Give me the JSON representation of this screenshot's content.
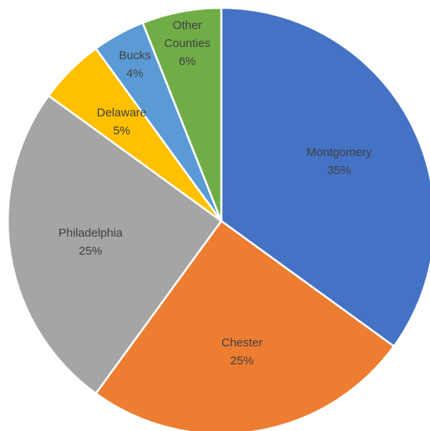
{
  "chart_data": {
    "type": "pie",
    "title": "",
    "start_angle_deg": 0,
    "direction": "clockwise",
    "slices": [
      {
        "label": "Montgomery",
        "percent_label": "35%",
        "value": 35,
        "color": "#4472C4"
      },
      {
        "label": "Chester",
        "percent_label": "25%",
        "value": 25,
        "color": "#ED7D31"
      },
      {
        "label": "Philadelphia",
        "percent_label": "25%",
        "value": 25,
        "color": "#A5A5A5"
      },
      {
        "label": "Delaware",
        "percent_label": "5%",
        "value": 5,
        "color": "#FFC000"
      },
      {
        "label": "Bucks",
        "percent_label": "4%",
        "value": 4,
        "color": "#5B9BD5"
      },
      {
        "label": "Other Counties",
        "percent_label": "6%",
        "value": 6,
        "color": "#70AD47"
      }
    ]
  }
}
